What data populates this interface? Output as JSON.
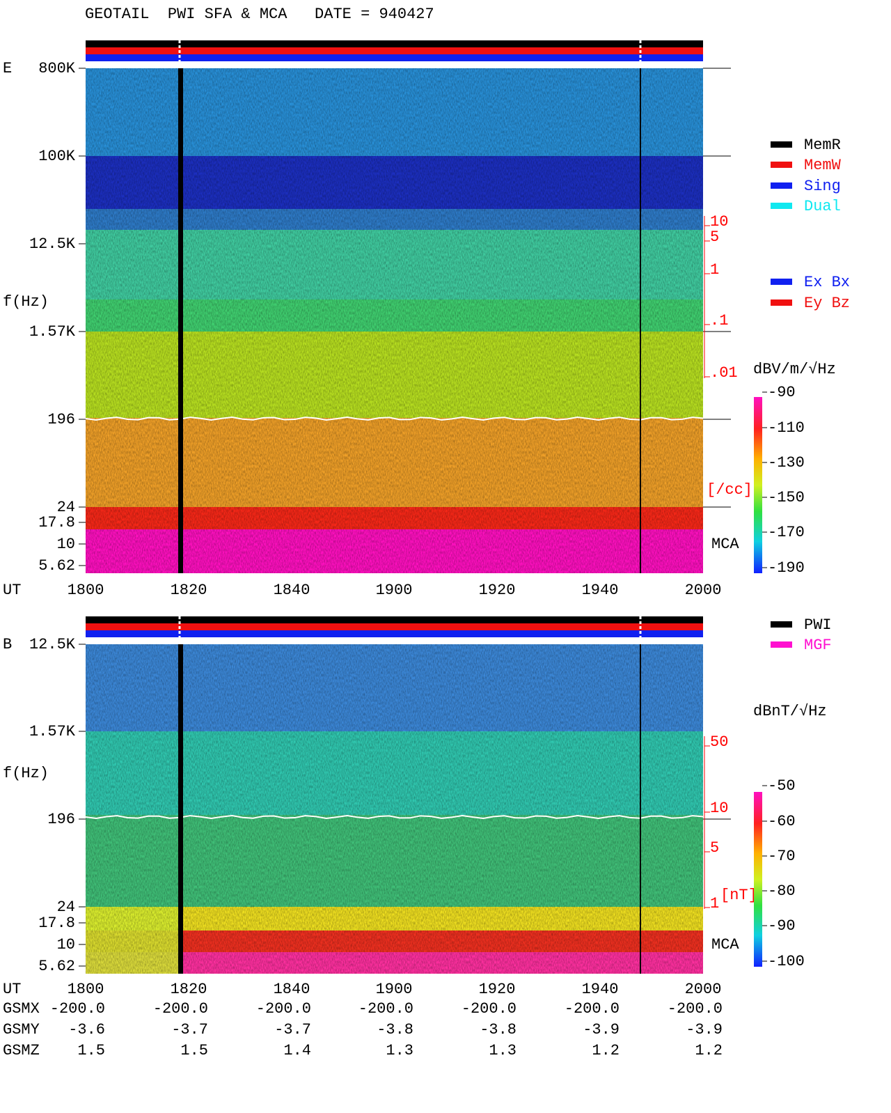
{
  "title": "GEOTAIL  PWI SFA & MCA   DATE = 940427",
  "panels": [
    {
      "label": "E",
      "y_axis_label": "f(Hz)",
      "y_ticks": [
        "800K",
        "100K",
        "12.5K",
        "1.57K",
        "196",
        "24",
        "17.8",
        "10",
        "5.62"
      ],
      "x_axis_label": "UT",
      "x_ticks": [
        "1800",
        "1820",
        "1840",
        "1900",
        "1920",
        "1940",
        "2000"
      ],
      "right_ticks": [
        "10",
        "5",
        "1",
        ".1",
        ".01"
      ],
      "right_unit": "[/cc]",
      "mca_label": "MCA",
      "colorbar_label": "dBV/m/√Hz",
      "colorbar_ticks": [
        "-90",
        "-110",
        "-130",
        "-150",
        "-170",
        "-190"
      ]
    },
    {
      "label": "B",
      "y_axis_label": "f(Hz)",
      "y_ticks": [
        "12.5K",
        "1.57K",
        "196",
        "24",
        "17.8",
        "10",
        "5.62"
      ],
      "x_axis_label": "UT",
      "x_ticks": [
        "1800",
        "1820",
        "1840",
        "1900",
        "1920",
        "1940",
        "2000"
      ],
      "right_ticks": [
        "50",
        "10",
        "5",
        "1"
      ],
      "right_unit": "[nT]",
      "mca_label": "MCA",
      "colorbar_label": "dBnT/√Hz",
      "colorbar_ticks": [
        "-50",
        "-60",
        "-70",
        "-80",
        "-90",
        "-100"
      ]
    }
  ],
  "legend_mode": [
    "MemR",
    "MemW",
    "Sing",
    "Dual"
  ],
  "legend_component": [
    "Ex Bx",
    "Ey Bz"
  ],
  "legend_source": [
    "PWI",
    "MGF"
  ],
  "orbit": [
    {
      "label": "GSMX",
      "values": [
        "-200.0",
        "-200.0",
        "-200.0",
        "-200.0",
        "-200.0",
        "-200.0",
        "-200.0"
      ]
    },
    {
      "label": "GSMY",
      "values": [
        "-3.6",
        "-3.7",
        "-3.7",
        "-3.8",
        "-3.8",
        "-3.9",
        "-3.9"
      ]
    },
    {
      "label": "GSMZ",
      "values": [
        "1.5",
        "1.5",
        "1.4",
        "1.3",
        "1.3",
        "1.2",
        "1.2"
      ]
    }
  ]
}
